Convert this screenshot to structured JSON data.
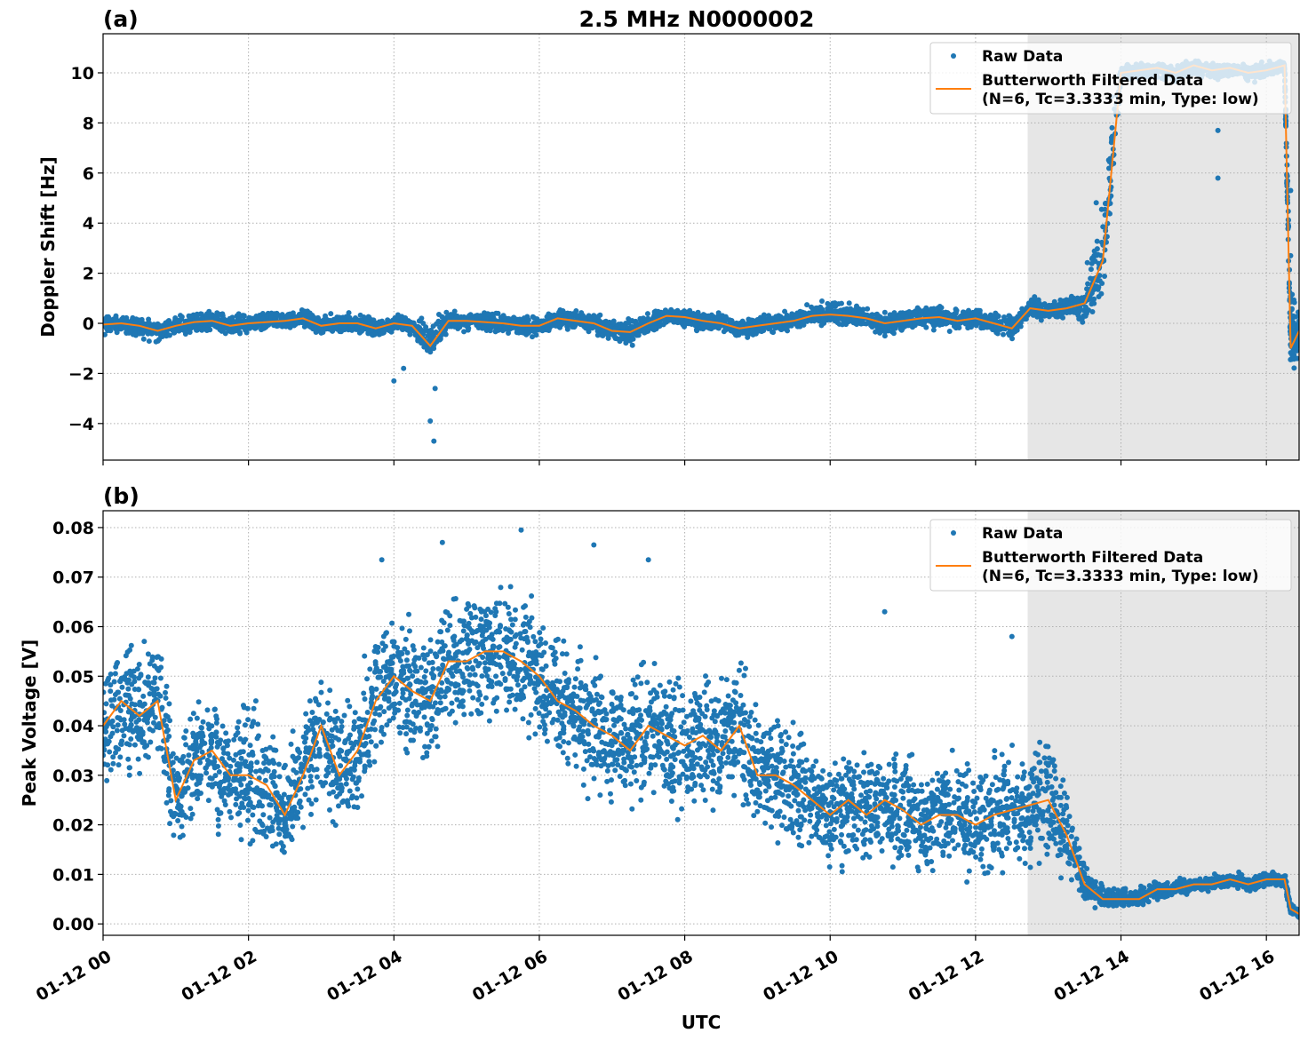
{
  "title": "2.5 MHz N0000002",
  "xlabel": "UTC",
  "x_tick_labels": [
    "01-12 00",
    "01-12 02",
    "01-12 04",
    "01-12 06",
    "01-12 08",
    "01-12 10",
    "01-12 12",
    "01-12 14",
    "01-12 16"
  ],
  "x_tick_hours": [
    0,
    2,
    4,
    6,
    8,
    10,
    12,
    14,
    16
  ],
  "xlim_utc": [
    "01-12 00:00",
    "01-12 16:27"
  ],
  "colors": {
    "raw": "#1f77b4",
    "filtered": "#ff7f0e",
    "shade": "#e6e6e6",
    "grid": "#b0b0b0"
  },
  "chart_data": [
    {
      "type": "scatter+line",
      "panel_label": "(a)",
      "ylabel": "Doppler Shift [Hz]",
      "ylim": [
        -5.46,
        11.56
      ],
      "y_ticks": [
        -4,
        -2,
        0,
        2,
        4,
        6,
        8,
        10
      ],
      "y_tick_labels": [
        "−4",
        "−2",
        "0",
        "2",
        "4",
        "6",
        "8",
        "10"
      ],
      "grid": true,
      "legend_position": "top-right",
      "legend": [
        "Raw Data",
        "Butterworth Filtered Data",
        "(N=6, Tc=3.3333 min, Type: low)"
      ],
      "shaded_span_utc": [
        "12:43",
        "16:27"
      ],
      "times_utc": [
        "00:00",
        "00:15",
        "00:30",
        "00:45",
        "01:00",
        "01:15",
        "01:30",
        "01:45",
        "02:00",
        "02:15",
        "02:30",
        "02:45",
        "03:00",
        "03:15",
        "03:30",
        "03:45",
        "04:00",
        "04:15",
        "04:30",
        "04:45",
        "05:00",
        "05:15",
        "05:30",
        "05:45",
        "06:00",
        "06:15",
        "06:30",
        "06:45",
        "07:00",
        "07:15",
        "07:30",
        "07:45",
        "08:00",
        "08:15",
        "08:30",
        "08:45",
        "09:00",
        "09:15",
        "09:30",
        "09:45",
        "10:00",
        "10:15",
        "10:30",
        "10:45",
        "11:00",
        "11:15",
        "11:30",
        "11:45",
        "12:00",
        "12:15",
        "12:30",
        "12:45",
        "13:00",
        "13:15",
        "13:30",
        "13:45",
        "14:00",
        "14:15",
        "14:30",
        "14:45",
        "15:00",
        "15:15",
        "15:30",
        "15:45",
        "16:00",
        "16:15",
        "16:20",
        "16:27"
      ],
      "filtered": [
        -0.05,
        0,
        -0.1,
        -0.3,
        -0.1,
        0.05,
        0.1,
        -0.1,
        0,
        0.05,
        0.1,
        0.2,
        -0.1,
        0,
        0,
        -0.2,
        0,
        -0.1,
        -0.9,
        0.1,
        0.1,
        0.05,
        0,
        -0.1,
        -0.1,
        0.2,
        0.1,
        0,
        -0.3,
        -0.35,
        0,
        0.3,
        0.25,
        0.1,
        0,
        -0.2,
        -0.1,
        0,
        0.1,
        0.3,
        0.35,
        0.3,
        0.2,
        0,
        0.1,
        0.2,
        0.25,
        0.1,
        0.2,
        0,
        -0.2,
        0.6,
        0.5,
        0.6,
        0.8,
        2.5,
        10.0,
        10.1,
        10.2,
        10.0,
        10.3,
        10.1,
        10.2,
        10.0,
        10.1,
        10.3,
        -1.0,
        -0.3
      ],
      "raw_low": [
        -0.6,
        -0.5,
        -0.7,
        -0.9,
        -0.6,
        -0.4,
        -0.4,
        -0.6,
        -0.5,
        -0.4,
        -0.4,
        -0.3,
        -0.6,
        -0.5,
        -0.5,
        -0.7,
        -0.5,
        -0.6,
        -1.5,
        -0.4,
        -0.4,
        -0.4,
        -0.5,
        -0.6,
        -0.6,
        -0.3,
        -0.4,
        -0.5,
        -0.9,
        -1.1,
        -0.5,
        -0.2,
        -0.3,
        -0.4,
        -0.5,
        -0.7,
        -0.6,
        -0.5,
        -0.4,
        -0.2,
        -0.1,
        -0.2,
        -0.3,
        -0.6,
        -0.4,
        -0.3,
        -0.3,
        -0.4,
        -0.3,
        -0.5,
        -0.8,
        0.1,
        0.0,
        0.1,
        -0.4,
        0.5,
        9.5,
        9.6,
        9.7,
        9.5,
        9.8,
        9.6,
        9.7,
        9.5,
        9.6,
        9.8,
        -2.2,
        -1.5
      ],
      "raw_high": [
        0.4,
        0.4,
        0.3,
        0.2,
        0.4,
        0.5,
        0.6,
        0.4,
        0.5,
        0.5,
        0.6,
        0.7,
        0.4,
        0.5,
        0.5,
        0.3,
        0.5,
        0.4,
        0.5,
        0.6,
        0.6,
        0.5,
        0.5,
        0.4,
        0.4,
        0.7,
        0.6,
        0.5,
        0.2,
        0.3,
        0.5,
        0.8,
        0.7,
        0.6,
        0.5,
        0.3,
        0.4,
        0.5,
        0.6,
        0.9,
        1.2,
        0.9,
        0.7,
        0.5,
        0.6,
        0.8,
        0.9,
        0.6,
        0.7,
        0.5,
        0.4,
        1.3,
        1.1,
        1.2,
        1.5,
        8.0,
        10.4,
        10.5,
        10.5,
        10.4,
        10.6,
        10.4,
        10.5,
        10.4,
        10.5,
        10.6,
        1.8,
        0.8
      ],
      "outliers_utc": [
        [
          "04:00",
          -2.3
        ],
        [
          "04:08",
          -1.8
        ],
        [
          "04:30",
          -3.9
        ],
        [
          "04:33",
          -4.7
        ],
        [
          "04:34",
          -2.6
        ],
        [
          "15:20",
          5.8
        ],
        [
          "15:20",
          7.7
        ],
        [
          "16:20",
          5.3
        ],
        [
          "16:20",
          2.7
        ]
      ]
    },
    {
      "type": "scatter+line",
      "panel_label": "(b)",
      "ylabel": "Peak Voltage [V]",
      "ylim": [
        -0.0023,
        0.0834
      ],
      "y_ticks": [
        0,
        0.01,
        0.02,
        0.03,
        0.04,
        0.05,
        0.06,
        0.07,
        0.08
      ],
      "y_tick_labels": [
        "0.00",
        "0.01",
        "0.02",
        "0.03",
        "0.04",
        "0.05",
        "0.06",
        "0.07",
        "0.08"
      ],
      "grid": true,
      "legend_position": "top-right",
      "legend": [
        "Raw Data",
        "Butterworth Filtered Data",
        "(N=6, Tc=3.3333 min, Type: low)"
      ],
      "shaded_span_utc": [
        "12:43",
        "16:27"
      ],
      "times_utc": [
        "00:00",
        "00:15",
        "00:30",
        "00:45",
        "01:00",
        "01:15",
        "01:30",
        "01:45",
        "02:00",
        "02:15",
        "02:30",
        "02:45",
        "03:00",
        "03:15",
        "03:30",
        "03:45",
        "04:00",
        "04:15",
        "04:30",
        "04:45",
        "05:00",
        "05:15",
        "05:30",
        "05:45",
        "06:00",
        "06:15",
        "06:30",
        "06:45",
        "07:00",
        "07:15",
        "07:30",
        "07:45",
        "08:00",
        "08:15",
        "08:30",
        "08:45",
        "09:00",
        "09:15",
        "09:30",
        "09:45",
        "10:00",
        "10:15",
        "10:30",
        "10:45",
        "11:00",
        "11:15",
        "11:30",
        "11:45",
        "12:00",
        "12:15",
        "12:30",
        "12:45",
        "13:00",
        "13:15",
        "13:30",
        "13:45",
        "14:00",
        "14:15",
        "14:30",
        "14:45",
        "15:00",
        "15:15",
        "15:30",
        "15:45",
        "16:00",
        "16:15",
        "16:20",
        "16:27"
      ],
      "filtered": [
        0.04,
        0.045,
        0.042,
        0.045,
        0.025,
        0.033,
        0.035,
        0.03,
        0.03,
        0.028,
        0.022,
        0.03,
        0.04,
        0.03,
        0.035,
        0.045,
        0.05,
        0.047,
        0.045,
        0.053,
        0.053,
        0.055,
        0.055,
        0.053,
        0.05,
        0.045,
        0.043,
        0.04,
        0.038,
        0.035,
        0.04,
        0.038,
        0.036,
        0.038,
        0.035,
        0.04,
        0.03,
        0.03,
        0.028,
        0.025,
        0.022,
        0.025,
        0.022,
        0.025,
        0.023,
        0.02,
        0.022,
        0.022,
        0.02,
        0.022,
        0.023,
        0.024,
        0.025,
        0.018,
        0.008,
        0.005,
        0.005,
        0.005,
        0.007,
        0.007,
        0.008,
        0.008,
        0.009,
        0.008,
        0.009,
        0.009,
        0.003,
        0.002
      ],
      "raw_low": [
        0.022,
        0.026,
        0.025,
        0.028,
        0.012,
        0.016,
        0.018,
        0.015,
        0.012,
        0.011,
        0.009,
        0.013,
        0.022,
        0.015,
        0.018,
        0.027,
        0.032,
        0.03,
        0.03,
        0.036,
        0.037,
        0.038,
        0.037,
        0.035,
        0.032,
        0.028,
        0.026,
        0.022,
        0.02,
        0.018,
        0.022,
        0.02,
        0.018,
        0.02,
        0.018,
        0.022,
        0.014,
        0.013,
        0.012,
        0.01,
        0.007,
        0.009,
        0.007,
        0.009,
        0.008,
        0.006,
        0.007,
        0.007,
        0.006,
        0.007,
        0.008,
        0.009,
        0.01,
        0.008,
        0.003,
        0.003,
        0.003,
        0.003,
        0.004,
        0.005,
        0.006,
        0.006,
        0.007,
        0.006,
        0.007,
        0.007,
        0.002,
        0.001
      ],
      "raw_high": [
        0.057,
        0.063,
        0.06,
        0.062,
        0.042,
        0.05,
        0.052,
        0.047,
        0.048,
        0.046,
        0.04,
        0.048,
        0.058,
        0.048,
        0.052,
        0.062,
        0.068,
        0.065,
        0.063,
        0.071,
        0.071,
        0.072,
        0.073,
        0.071,
        0.068,
        0.063,
        0.06,
        0.058,
        0.056,
        0.053,
        0.058,
        0.056,
        0.054,
        0.056,
        0.053,
        0.058,
        0.046,
        0.047,
        0.044,
        0.041,
        0.037,
        0.04,
        0.037,
        0.04,
        0.038,
        0.035,
        0.037,
        0.037,
        0.035,
        0.037,
        0.038,
        0.04,
        0.042,
        0.03,
        0.014,
        0.008,
        0.008,
        0.008,
        0.009,
        0.01,
        0.01,
        0.01,
        0.011,
        0.01,
        0.011,
        0.011,
        0.005,
        0.003
      ],
      "outliers_utc": [
        [
          "05:45",
          0.0795
        ],
        [
          "04:40",
          0.077
        ],
        [
          "07:30",
          0.0735
        ],
        [
          "06:45",
          0.0765
        ],
        [
          "03:50",
          0.0735
        ],
        [
          "10:45",
          0.063
        ],
        [
          "12:30",
          0.058
        ]
      ]
    }
  ]
}
